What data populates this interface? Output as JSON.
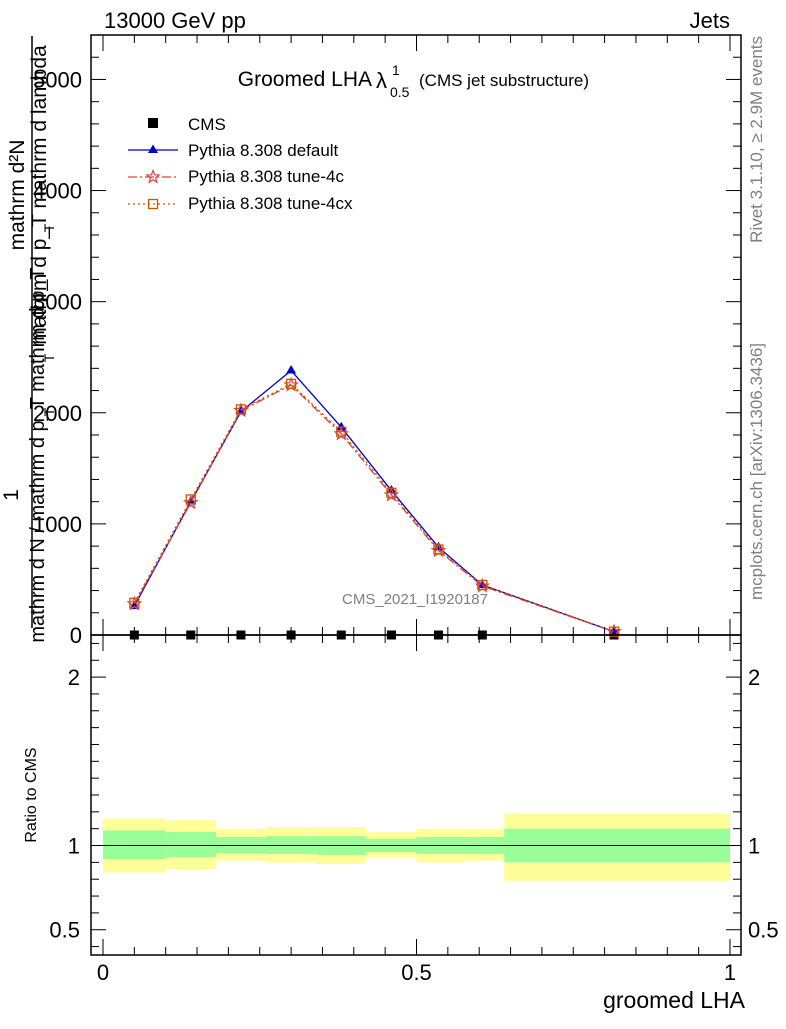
{
  "header": {
    "left": "13000 GeV pp",
    "right": "Jets"
  },
  "side_text": {
    "rivet": "Rivet 3.1.10, ≥ 2.9M events",
    "mcplots": "mcplots.cern.ch [arXiv:1306.3436]"
  },
  "chart_data": [
    {
      "type": "line",
      "title": {
        "main": "Groomed LHA",
        "symbol": "λ",
        "sup": "1",
        "sub": "0.5",
        "note": "(CMS jet substructure)"
      },
      "ylabel": {
        "numerator": "1",
        "denominator_top": "mathrm d p_T mathrm d lambda",
        "denominator": "mathrm d N / mathrm d p_T",
        "line2": "mathrm d²N",
        "tsub1": "T",
        "tsub2": "T",
        "tsub3": "T"
      },
      "ylabel_lines": [
        "mathrm d²N",
        "mathrm d p_T mathrm d lambda",
        "1",
        "mathrm d N / mathrm d p_T mathrm d p_T"
      ],
      "watermark": "CMS_2021_I1920187",
      "xlim": [
        0,
        1
      ],
      "ylim": [
        0,
        5400
      ],
      "yticks": [
        0,
        1000,
        2000,
        3000,
        4000,
        5000
      ],
      "ytick_labels": [
        "0",
        "1000",
        "2000",
        "3000",
        "4000",
        "5000"
      ],
      "legend": {
        "placement": "top-left",
        "entries": [
          "CMS",
          "Pythia 8.308 default",
          "Pythia 8.308 tune-4c",
          "Pythia 8.308 tune-4cx"
        ]
      },
      "bins": [
        {
          "lo": 0.0,
          "hi": 0.1
        },
        {
          "lo": 0.1,
          "hi": 0.18
        },
        {
          "lo": 0.18,
          "hi": 0.26
        },
        {
          "lo": 0.26,
          "hi": 0.34
        },
        {
          "lo": 0.34,
          "hi": 0.42
        },
        {
          "lo": 0.42,
          "hi": 0.5
        },
        {
          "lo": 0.5,
          "hi": 0.58
        },
        {
          "lo": 0.58,
          "hi": 0.64
        },
        {
          "lo": 0.64,
          "hi": 1.0
        }
      ],
      "series": [
        {
          "name": "CMS",
          "color": "#000000",
          "marker": "square",
          "x": [
            0.05,
            0.14,
            0.22,
            0.3,
            0.38,
            0.46,
            0.535,
            0.605,
            0.815
          ],
          "values": [
            0,
            0,
            0,
            0,
            0,
            0,
            0,
            0,
            0
          ]
        },
        {
          "name": "Pythia 8.308 default",
          "color": "#0000cc",
          "marker": "triangle",
          "dash": "",
          "x": [
            0.05,
            0.14,
            0.22,
            0.3,
            0.38,
            0.46,
            0.535,
            0.605,
            0.815
          ],
          "values": [
            260,
            1200,
            2010,
            2380,
            1870,
            1300,
            790,
            450,
            30
          ]
        },
        {
          "name": "Pythia 8.308 tune-4c",
          "color": "#e04040",
          "marker": "star",
          "dash": "9,3,2,3",
          "x": [
            0.05,
            0.14,
            0.22,
            0.3,
            0.38,
            0.46,
            0.535,
            0.605,
            0.815
          ],
          "values": [
            280,
            1190,
            2020,
            2250,
            1810,
            1260,
            760,
            440,
            30
          ]
        },
        {
          "name": "Pythia 8.308 tune-4cx",
          "color": "#cc5500",
          "marker": "open-square",
          "dash": "2,3",
          "x": [
            0.05,
            0.14,
            0.22,
            0.3,
            0.38,
            0.46,
            0.535,
            0.605,
            0.815
          ],
          "values": [
            290,
            1220,
            2030,
            2260,
            1830,
            1280,
            770,
            450,
            30
          ]
        }
      ]
    },
    {
      "type": "band",
      "ylabel": "Ratio to CMS",
      "xlabel": "groomed LHA",
      "xlim": [
        0,
        1
      ],
      "ylim": [
        0.35,
        2.25
      ],
      "yticks": [
        0.5,
        1,
        2
      ],
      "ytick_labels": [
        "0.5",
        "1",
        "2"
      ],
      "xticks": [
        0,
        0.5,
        1
      ],
      "xtick_labels": [
        "0",
        "0.5",
        "1"
      ],
      "inner_band_color": "#99ff99",
      "outer_band_color": "#ffff99",
      "bins": [
        {
          "lo": 0.0,
          "hi": 0.1,
          "inner": [
            0.92,
            1.09
          ],
          "outer": [
            0.84,
            1.16
          ]
        },
        {
          "lo": 0.1,
          "hi": 0.18,
          "inner": [
            0.93,
            1.08
          ],
          "outer": [
            0.86,
            1.15
          ]
        },
        {
          "lo": 0.18,
          "hi": 0.26,
          "inner": [
            0.955,
            1.05
          ],
          "outer": [
            0.91,
            1.1
          ]
        },
        {
          "lo": 0.26,
          "hi": 0.34,
          "inner": [
            0.95,
            1.055
          ],
          "outer": [
            0.9,
            1.11
          ]
        },
        {
          "lo": 0.34,
          "hi": 0.42,
          "inner": [
            0.945,
            1.055
          ],
          "outer": [
            0.89,
            1.11
          ]
        },
        {
          "lo": 0.42,
          "hi": 0.5,
          "inner": [
            0.96,
            1.04
          ],
          "outer": [
            0.93,
            1.08
          ]
        },
        {
          "lo": 0.5,
          "hi": 0.58,
          "inner": [
            0.95,
            1.05
          ],
          "outer": [
            0.9,
            1.1
          ]
        },
        {
          "lo": 0.58,
          "hi": 0.64,
          "inner": [
            0.95,
            1.05
          ],
          "outer": [
            0.91,
            1.1
          ]
        },
        {
          "lo": 0.64,
          "hi": 1.0,
          "inner": [
            0.9,
            1.1
          ],
          "outer": [
            0.79,
            1.19
          ]
        }
      ],
      "reference_line": 1
    }
  ]
}
